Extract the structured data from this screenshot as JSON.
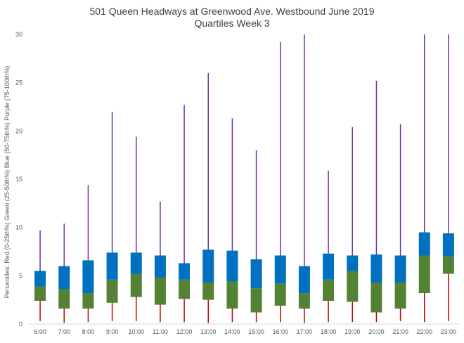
{
  "chart_data": {
    "type": "box",
    "title": "501 Queen Headways at Greenwood Ave. Westbound June 2019",
    "subtitle": "Quartiles Week 3",
    "ylabel": "Percentiles: Red (0-25th%)  Green (25-50th%)  Blue (50-75th%)  Purple (75-100th%)",
    "xlabel": "",
    "ylim": [
      0,
      30
    ],
    "yticks": [
      0,
      5,
      10,
      15,
      20,
      25,
      30
    ],
    "grid": false,
    "categories": [
      "6:00",
      "7:00",
      "8:00",
      "9:00",
      "10:00",
      "11:00",
      "12:00",
      "13:00",
      "14:00",
      "15:00",
      "16:00",
      "17:00",
      "18:00",
      "19:00",
      "20:00",
      "21:00",
      "22:00",
      "23:00"
    ],
    "series": [
      {
        "name": "Red (0-25th%)",
        "color": "#c00000",
        "min": [
          0.3,
          0.1,
          0.2,
          0.3,
          0.3,
          0.2,
          0.2,
          0.1,
          0.2,
          0.2,
          0.2,
          0.1,
          0.2,
          0.2,
          0.2,
          0.3,
          0.2,
          0.3
        ],
        "q1": [
          2.4,
          1.6,
          1.6,
          2.2,
          2.8,
          2.0,
          2.6,
          2.5,
          1.6,
          1.2,
          1.9,
          1.6,
          2.4,
          2.3,
          1.2,
          1.6,
          3.2,
          5.2
        ]
      },
      {
        "name": "Green (25-50th%)",
        "color": "#548235",
        "median": [
          3.9,
          3.6,
          3.2,
          4.6,
          5.2,
          4.8,
          4.6,
          4.3,
          4.4,
          3.7,
          4.2,
          3.2,
          4.6,
          5.5,
          4.3,
          4.3,
          7.1,
          7.0
        ]
      },
      {
        "name": "Blue (50-75th%)",
        "color": "#0070c0",
        "q3": [
          5.5,
          6.0,
          6.6,
          7.4,
          7.4,
          7.1,
          6.3,
          7.7,
          7.6,
          6.7,
          7.1,
          6.0,
          7.3,
          7.1,
          7.2,
          7.1,
          9.5,
          9.4
        ]
      },
      {
        "name": "Purple (75-100th%)",
        "color": "#7030a0",
        "max": [
          9.7,
          10.4,
          14.4,
          22.0,
          19.4,
          12.7,
          22.7,
          26.0,
          21.3,
          18.0,
          29.2,
          30.5,
          15.9,
          20.4,
          25.2,
          20.7,
          30.5,
          30.5
        ]
      }
    ]
  }
}
